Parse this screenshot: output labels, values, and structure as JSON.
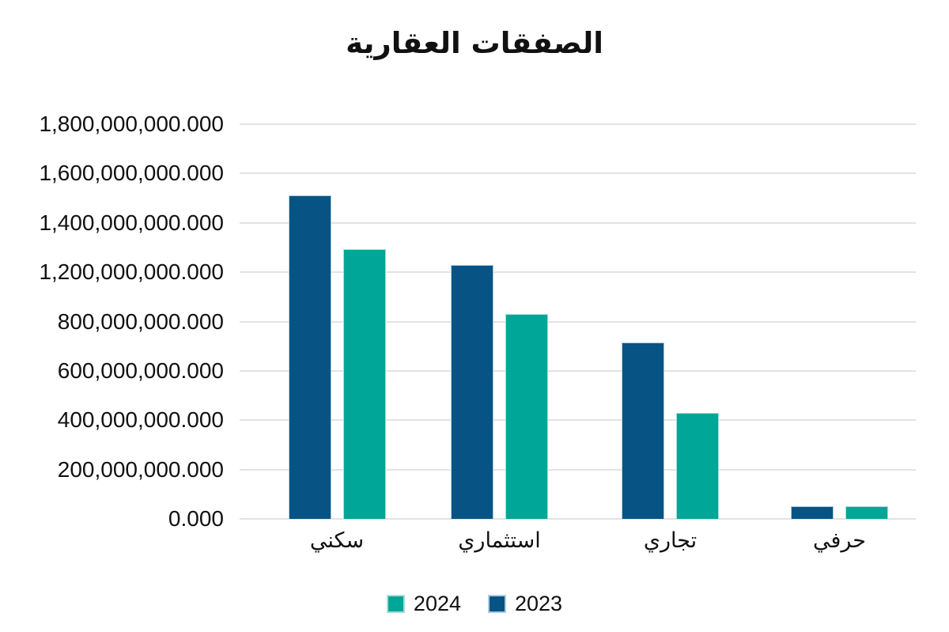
{
  "chart_data": {
    "type": "bar",
    "title": "الصفقات العقارية",
    "categories": [
      "سكني",
      "استثماري",
      "تجاري",
      "حرفي"
    ],
    "series": [
      {
        "name": "2023",
        "color": "#075484",
        "border_color": "#a9cbe0",
        "values": [
          1510000000,
          1230000000,
          715000000,
          50000000
        ]
      },
      {
        "name": "2024",
        "color": "#00a697",
        "border_color": "#a8ded7",
        "values": [
          1295000000,
          860000000,
          430000000,
          52000000
        ]
      }
    ],
    "y_axis": {
      "tick_labels_top_to_bottom": [
        "1,800,000,000.000",
        "1,600,000,000.000",
        "1,400,000,000.000",
        "1,200,000,000.000",
        "800,000,000.000",
        "600,000,000.000",
        "400,000,000.000",
        "200,000,000.000",
        "0.000"
      ],
      "tick_values_top_to_bottom": [
        1800000000,
        1600000000,
        1400000000,
        1200000000,
        800000000,
        600000000,
        400000000,
        200000000,
        0
      ]
    },
    "legend": [
      {
        "label": "2024",
        "color": "#00a697",
        "border_color": "#a8ded7"
      },
      {
        "label": "2023",
        "color": "#075484",
        "border_color": "#a9cbe0"
      }
    ],
    "legend_position": "bottom",
    "grid": true,
    "colors": {
      "grid_line": "#e3e3e3",
      "text": "#111111",
      "background": "#ffffff"
    }
  }
}
